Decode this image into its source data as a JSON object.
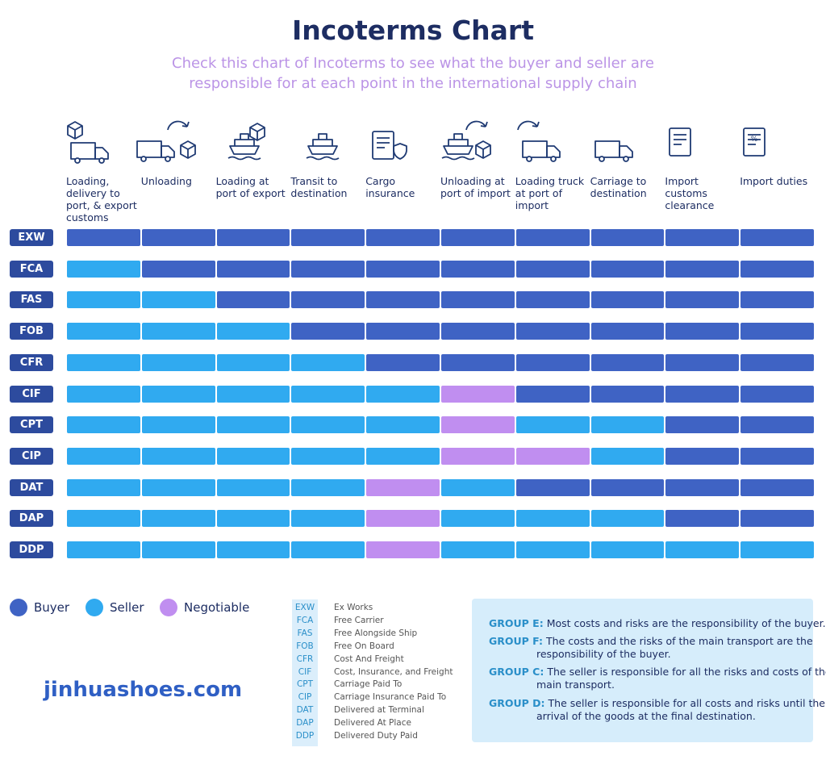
{
  "header": {
    "title": "Incoterms Chart",
    "subtitle": "Check this chart of Incoterms to see what the buyer and seller are responsible for at each point in the international supply chain"
  },
  "columns": [
    "Loading, delivery to port, & export customs",
    "Unloading",
    "Loading at port of export",
    "Transit to destination",
    "Cargo insurance",
    "Unloading at port of import",
    "Loading truck at port of import",
    "Carriage to destination",
    "Import customs clearance",
    "Import duties"
  ],
  "rows": [
    {
      "code": "EXW",
      "cells": [
        "Buyer",
        "Buyer",
        "Buyer",
        "Buyer",
        "Buyer",
        "Buyer",
        "Buyer",
        "Buyer",
        "Buyer",
        "Buyer"
      ]
    },
    {
      "code": "FCA",
      "cells": [
        "Seller",
        "Buyer",
        "Buyer",
        "Buyer",
        "Buyer",
        "Buyer",
        "Buyer",
        "Buyer",
        "Buyer",
        "Buyer"
      ]
    },
    {
      "code": "FAS",
      "cells": [
        "Seller",
        "Seller",
        "Buyer",
        "Buyer",
        "Buyer",
        "Buyer",
        "Buyer",
        "Buyer",
        "Buyer",
        "Buyer"
      ]
    },
    {
      "code": "FOB",
      "cells": [
        "Seller",
        "Seller",
        "Seller",
        "Buyer",
        "Buyer",
        "Buyer",
        "Buyer",
        "Buyer",
        "Buyer",
        "Buyer"
      ]
    },
    {
      "code": "CFR",
      "cells": [
        "Seller",
        "Seller",
        "Seller",
        "Seller",
        "Buyer",
        "Buyer",
        "Buyer",
        "Buyer",
        "Buyer",
        "Buyer"
      ]
    },
    {
      "code": "CIF",
      "cells": [
        "Seller",
        "Seller",
        "Seller",
        "Seller",
        "Seller",
        "Negotiable",
        "Buyer",
        "Buyer",
        "Buyer",
        "Buyer"
      ]
    },
    {
      "code": "CPT",
      "cells": [
        "Seller",
        "Seller",
        "Seller",
        "Seller",
        "Seller",
        "Negotiable",
        "Seller",
        "Seller",
        "Buyer",
        "Buyer"
      ]
    },
    {
      "code": "CIP",
      "cells": [
        "Seller",
        "Seller",
        "Seller",
        "Seller",
        "Seller",
        "Negotiable",
        "Negotiable",
        "Seller",
        "Buyer",
        "Buyer"
      ]
    },
    {
      "code": "DAT",
      "cells": [
        "Seller",
        "Seller",
        "Seller",
        "Seller",
        "Negotiable",
        "Seller",
        "Buyer",
        "Buyer",
        "Buyer",
        "Buyer"
      ]
    },
    {
      "code": "DAP",
      "cells": [
        "Seller",
        "Seller",
        "Seller",
        "Seller",
        "Negotiable",
        "Seller",
        "Seller",
        "Seller",
        "Buyer",
        "Buyer"
      ]
    },
    {
      "code": "DDP",
      "cells": [
        "Seller",
        "Seller",
        "Seller",
        "Seller",
        "Negotiable",
        "Seller",
        "Seller",
        "Seller",
        "Seller",
        "Seller"
      ]
    }
  ],
  "legend": [
    {
      "name": "Buyer",
      "color": "#3f63c4"
    },
    {
      "name": "Seller",
      "color": "#30aaf0"
    },
    {
      "name": "Negotiable",
      "color": "#c08ef0"
    }
  ],
  "glossary": [
    {
      "code": "EXW",
      "name": "Ex Works"
    },
    {
      "code": "FCA",
      "name": "Free Carrier"
    },
    {
      "code": "FAS",
      "name": "Free Alongside Ship"
    },
    {
      "code": "FOB",
      "name": "Free On Board"
    },
    {
      "code": "CFR",
      "name": "Cost And Freight"
    },
    {
      "code": "CIF",
      "name": "Cost, Insurance, and Freight"
    },
    {
      "code": "CPT",
      "name": "Carriage Paid To"
    },
    {
      "code": "CIP",
      "name": "Carriage Insurance Paid To"
    },
    {
      "code": "DAT",
      "name": "Delivered at Terminal"
    },
    {
      "code": "DAP",
      "name": "Delivered At Place"
    },
    {
      "code": "DDP",
      "name": "Delivered Duty Paid"
    }
  ],
  "groups": [
    {
      "label": "GROUP E:",
      "text": "Most costs and risks are the responsibility of the buyer."
    },
    {
      "label": "GROUP F:",
      "text": "The costs and the risks of the main transport are the responsibility of the buyer."
    },
    {
      "label": "GROUP C:",
      "text": "The seller is responsible for all the risks and costs of the main transport."
    },
    {
      "label": "GROUP D:",
      "text": "The seller is responsible for all costs and risks until the arrival of the goods at the final destination."
    }
  ],
  "watermark": "jinhuashoes.com"
}
